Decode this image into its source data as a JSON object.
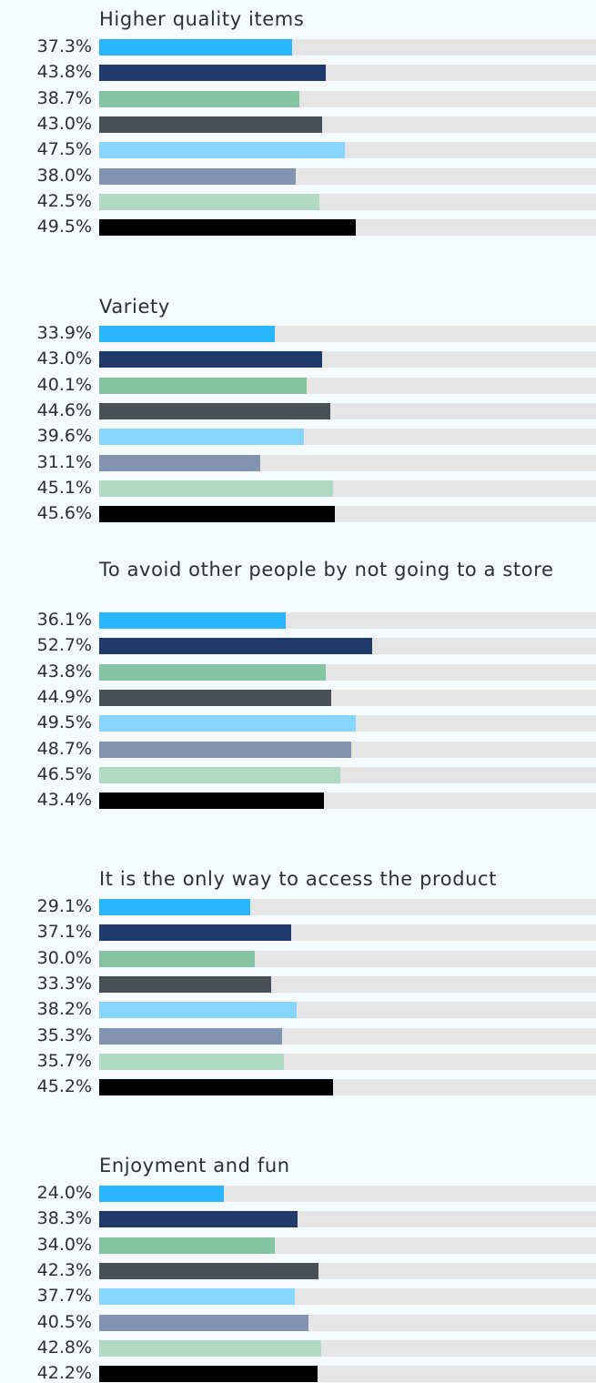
{
  "chart_data": {
    "type": "bar",
    "orientation": "horizontal",
    "xlim": [
      0,
      100
    ],
    "value_suffix": "%",
    "grid": false,
    "legend": "none",
    "series_colors": [
      "#29b6ff",
      "#1e3a6b",
      "#84c4a1",
      "#4a4f55",
      "#86d6ff",
      "#8193b1",
      "#b1dac4",
      "#000000"
    ],
    "track_color": "#e5e5e5",
    "groups": [
      {
        "category": "Higher quality items",
        "values": [
          37.3,
          43.8,
          38.7,
          43.0,
          47.5,
          38.0,
          42.5,
          49.5
        ],
        "labels": [
          "37.3%",
          "43.8%",
          "38.7%",
          "43.0%",
          "47.5%",
          "38.0%",
          "42.5%",
          "49.5%"
        ]
      },
      {
        "category": "Variety",
        "values": [
          33.9,
          43.0,
          40.1,
          44.6,
          39.6,
          31.1,
          45.1,
          45.6
        ],
        "labels": [
          "33.9%",
          "43.0%",
          "40.1%",
          "44.6%",
          "39.6%",
          "31.1%",
          "45.1%",
          "45.6%"
        ]
      },
      {
        "category": "To avoid other people by not going to a store",
        "values": [
          36.1,
          52.7,
          43.8,
          44.9,
          49.5,
          48.7,
          46.5,
          43.4
        ],
        "labels": [
          "36.1%",
          "52.7%",
          "43.8%",
          "44.9%",
          "49.5%",
          "48.7%",
          "46.5%",
          "43.4%"
        ]
      },
      {
        "category": "It is the only way to access the product",
        "values": [
          29.1,
          37.1,
          30.0,
          33.3,
          38.2,
          35.3,
          35.7,
          45.2
        ],
        "labels": [
          "29.1%",
          "37.1%",
          "30.0%",
          "33.3%",
          "38.2%",
          "35.3%",
          "35.7%",
          "45.2%"
        ]
      },
      {
        "category": "Enjoyment and fun",
        "values": [
          24.0,
          38.3,
          34.0,
          42.3,
          37.7,
          40.5,
          42.8,
          42.2
        ],
        "labels": [
          "24.0%",
          "38.3%",
          "34.0%",
          "42.3%",
          "37.7%",
          "40.5%",
          "42.8%",
          "42.2%"
        ]
      }
    ]
  }
}
